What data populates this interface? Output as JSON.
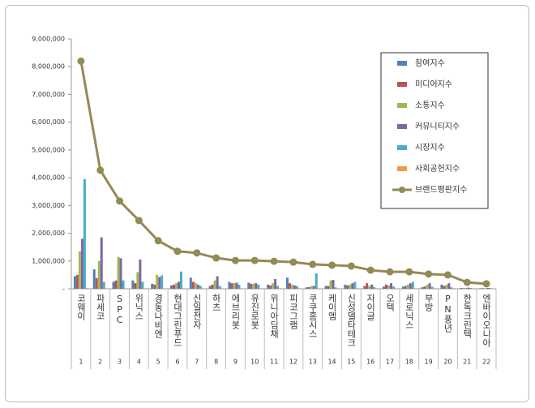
{
  "chart_data": {
    "type": "bar",
    "categories": [
      "코웨이",
      "파세코",
      "SPC",
      "위닉스",
      "경동나비엔",
      "현대그린푸드",
      "신일전자",
      "하츠",
      "에브리봇",
      "유진로봇",
      "위니아딤채",
      "피코그램",
      "쿠쿠홈시스",
      "케이엠",
      "신성델타테크",
      "자이글",
      "오텍",
      "세로닉스",
      "부방",
      "PN풍년",
      "한독크린텍",
      "엔바이오니아"
    ],
    "ranks": [
      "1",
      "2",
      "3",
      "4",
      "5",
      "6",
      "7",
      "8",
      "9",
      "10",
      "11",
      "12",
      "13",
      "14",
      "15",
      "16",
      "17",
      "18",
      "19",
      "20",
      "21",
      "22"
    ],
    "series": [
      {
        "name": "참여지수",
        "type": "bar",
        "color": "#4f81bd",
        "values": [
          450000,
          700000,
          250000,
          300000,
          180000,
          120000,
          400000,
          100000,
          250000,
          220000,
          150000,
          400000,
          50000,
          100000,
          150000,
          100000,
          80000,
          80000,
          60000,
          150000,
          30000,
          20000
        ]
      },
      {
        "name": "미디어지수",
        "type": "bar",
        "color": "#c0504d",
        "values": [
          500000,
          380000,
          300000,
          200000,
          150000,
          150000,
          250000,
          150000,
          200000,
          180000,
          120000,
          200000,
          60000,
          100000,
          120000,
          200000,
          150000,
          100000,
          80000,
          100000,
          20000,
          20000
        ]
      },
      {
        "name": "소통지수",
        "type": "bar",
        "color": "#9bbb59",
        "values": [
          1350000,
          1000000,
          1150000,
          600000,
          500000,
          200000,
          200000,
          300000,
          200000,
          180000,
          200000,
          150000,
          100000,
          300000,
          150000,
          100000,
          120000,
          150000,
          150000,
          150000,
          30000,
          20000
        ]
      },
      {
        "name": "커뮤니티지수",
        "type": "bar",
        "color": "#8064a2",
        "values": [
          1800000,
          1850000,
          1100000,
          1050000,
          420000,
          250000,
          150000,
          450000,
          220000,
          200000,
          350000,
          120000,
          100000,
          320000,
          200000,
          150000,
          200000,
          200000,
          200000,
          200000,
          40000,
          30000
        ]
      },
      {
        "name": "시장지수",
        "type": "bar",
        "color": "#4bacc6",
        "values": [
          3950000,
          250000,
          300000,
          250000,
          480000,
          620000,
          100000,
          100000,
          150000,
          150000,
          100000,
          100000,
          550000,
          50000,
          250000,
          60000,
          80000,
          250000,
          70000,
          50000,
          30000,
          30000
        ]
      },
      {
        "name": "사회공헌지수",
        "type": "bar",
        "color": "#f79646",
        "values": [
          30000,
          20000,
          20000,
          20000,
          20000,
          20000,
          20000,
          20000,
          20000,
          20000,
          20000,
          20000,
          20000,
          20000,
          20000,
          20000,
          20000,
          20000,
          20000,
          20000,
          10000,
          10000
        ]
      },
      {
        "name": "브랜드평판지수",
        "type": "line",
        "color": "#948a54",
        "values": [
          8200000,
          4270000,
          3160000,
          2460000,
          1730000,
          1350000,
          1290000,
          1110000,
          1020000,
          1020000,
          990000,
          960000,
          880000,
          850000,
          820000,
          670000,
          610000,
          610000,
          530000,
          500000,
          230000,
          180000
        ]
      }
    ],
    "ylim": [
      0,
      9000000
    ],
    "yticks": [
      {
        "value": 0,
        "label": "-"
      },
      {
        "value": 1000000,
        "label": "1,000,000"
      },
      {
        "value": 2000000,
        "label": "2,000,000"
      },
      {
        "value": 3000000,
        "label": "3,000,000"
      },
      {
        "value": 4000000,
        "label": "4,000,000"
      },
      {
        "value": 5000000,
        "label": "5,000,000"
      },
      {
        "value": 6000000,
        "label": "6,000,000"
      },
      {
        "value": 7000000,
        "label": "7,000,000"
      },
      {
        "value": 8000000,
        "label": "8,000,000"
      },
      {
        "value": 9000000,
        "label": "9,000,000"
      }
    ],
    "legend": "top-right"
  }
}
